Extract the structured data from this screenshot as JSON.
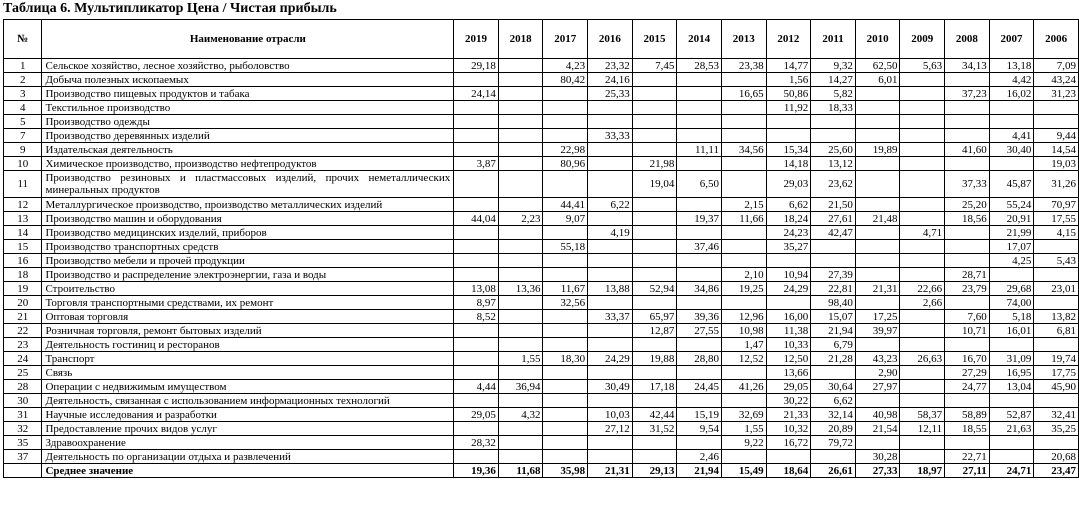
{
  "title": "Таблица 6. Мультипликатор Цена / Чистая прибыль",
  "headers": {
    "num": "№",
    "name": "Наименование отрасли",
    "years": [
      "2019",
      "2018",
      "2017",
      "2016",
      "2015",
      "2014",
      "2013",
      "2012",
      "2011",
      "2010",
      "2009",
      "2008",
      "2007",
      "2006"
    ]
  },
  "rows": [
    {
      "n": "1",
      "name": "Сельское хозяйство, лесное хозяйство, рыболовство",
      "v": [
        "29,18",
        "",
        "4,23",
        "23,32",
        "7,45",
        "28,53",
        "23,38",
        "14,77",
        "9,32",
        "62,50",
        "5,63",
        "34,13",
        "13,18",
        "7,09"
      ]
    },
    {
      "n": "2",
      "name": "Добыча полезных ископаемых",
      "v": [
        "",
        "",
        "80,42",
        "24,16",
        "",
        "",
        "",
        "1,56",
        "14,27",
        "6,01",
        "",
        "",
        "4,42",
        "43,24"
      ]
    },
    {
      "n": "3",
      "name": "Производство пищевых продуктов и табака",
      "v": [
        "24,14",
        "",
        "",
        "25,33",
        "",
        "",
        "16,65",
        "50,86",
        "5,82",
        "",
        "",
        "37,23",
        "16,02",
        "31,23"
      ]
    },
    {
      "n": "4",
      "name": "Текстильное производство",
      "v": [
        "",
        "",
        "",
        "",
        "",
        "",
        "",
        "11,92",
        "18,33",
        "",
        "",
        "",
        "",
        ""
      ]
    },
    {
      "n": "5",
      "name": "Производство одежды",
      "v": [
        "",
        "",
        "",
        "",
        "",
        "",
        "",
        "",
        "",
        "",
        "",
        "",
        "",
        ""
      ]
    },
    {
      "n": "7",
      "name": "Производство деревянных изделий",
      "v": [
        "",
        "",
        "",
        "33,33",
        "",
        "",
        "",
        "",
        "",
        "",
        "",
        "",
        "4,41",
        "9,44"
      ]
    },
    {
      "n": "9",
      "name": "Издательская деятельность",
      "v": [
        "",
        "",
        "22,98",
        "",
        "",
        "11,11",
        "34,56",
        "15,34",
        "25,60",
        "19,89",
        "",
        "41,60",
        "30,40",
        "14,54"
      ]
    },
    {
      "n": "10",
      "name": "Химическое производство, производство нефтепродуктов",
      "v": [
        "3,87",
        "",
        "80,96",
        "",
        "21,98",
        "",
        "",
        "14,18",
        "13,12",
        "",
        "",
        "",
        "",
        "19,03"
      ]
    },
    {
      "n": "11",
      "name": "Производство резиновых и пластмассовых изделий, прочих неметаллических минеральных продуктов",
      "tall": true,
      "v": [
        "",
        "",
        "",
        "",
        "19,04",
        "6,50",
        "",
        "29,03",
        "23,62",
        "",
        "",
        "37,33",
        "45,87",
        "31,26"
      ]
    },
    {
      "n": "12",
      "name": "Металлургическое производство, производство металлических изделий",
      "v": [
        "",
        "",
        "44,41",
        "6,22",
        "",
        "",
        "2,15",
        "6,62",
        "21,50",
        "",
        "",
        "25,20",
        "55,24",
        "70,97"
      ]
    },
    {
      "n": "13",
      "name": "Производство машин и оборудования",
      "v": [
        "44,04",
        "2,23",
        "9,07",
        "",
        "",
        "19,37",
        "11,66",
        "18,24",
        "27,61",
        "21,48",
        "",
        "18,56",
        "20,91",
        "17,55"
      ]
    },
    {
      "n": "14",
      "name": "Производство медицинских изделий, приборов",
      "v": [
        "",
        "",
        "",
        "4,19",
        "",
        "",
        "",
        "24,23",
        "42,47",
        "",
        "4,71",
        "",
        "21,99",
        "4,15"
      ]
    },
    {
      "n": "15",
      "name": "Производство транспортных средств",
      "v": [
        "",
        "",
        "55,18",
        "",
        "",
        "37,46",
        "",
        "35,27",
        "",
        "",
        "",
        "",
        "17,07",
        ""
      ]
    },
    {
      "n": "16",
      "name": "Производство мебели и прочей продукции",
      "v": [
        "",
        "",
        "",
        "",
        "",
        "",
        "",
        "",
        "",
        "",
        "",
        "",
        "4,25",
        "5,43"
      ]
    },
    {
      "n": "18",
      "name": "Производство и распределение электроэнергии, газа и воды",
      "v": [
        "",
        "",
        "",
        "",
        "",
        "",
        "2,10",
        "10,94",
        "27,39",
        "",
        "",
        "28,71",
        "",
        ""
      ]
    },
    {
      "n": "19",
      "name": "Строительство",
      "v": [
        "13,08",
        "13,36",
        "11,67",
        "13,88",
        "52,94",
        "34,86",
        "19,25",
        "24,29",
        "22,81",
        "21,31",
        "22,66",
        "23,79",
        "29,68",
        "23,01"
      ]
    },
    {
      "n": "20",
      "name": "Торговля транспортными средствами, их ремонт",
      "v": [
        "8,97",
        "",
        "32,56",
        "",
        "",
        "",
        "",
        "",
        "98,40",
        "",
        "2,66",
        "",
        "74,00",
        ""
      ]
    },
    {
      "n": "21",
      "name": "Оптовая торговля",
      "v": [
        "8,52",
        "",
        "",
        "33,37",
        "65,97",
        "39,36",
        "12,96",
        "16,00",
        "15,07",
        "17,25",
        "",
        "7,60",
        "5,18",
        "13,82"
      ]
    },
    {
      "n": "22",
      "name": "Розничная торговля, ремонт бытовых изделий",
      "v": [
        "",
        "",
        "",
        "",
        "12,87",
        "27,55",
        "10,98",
        "11,38",
        "21,94",
        "39,97",
        "",
        "10,71",
        "16,01",
        "6,81"
      ]
    },
    {
      "n": "23",
      "name": "Деятельность гостиниц и ресторанов",
      "v": [
        "",
        "",
        "",
        "",
        "",
        "",
        "1,47",
        "10,33",
        "6,79",
        "",
        "",
        "",
        "",
        ""
      ]
    },
    {
      "n": "24",
      "name": "Транспорт",
      "v": [
        "",
        "1,55",
        "18,30",
        "24,29",
        "19,88",
        "28,80",
        "12,52",
        "12,50",
        "21,28",
        "43,23",
        "26,63",
        "16,70",
        "31,09",
        "19,74"
      ]
    },
    {
      "n": "25",
      "name": "Связь",
      "v": [
        "",
        "",
        "",
        "",
        "",
        "",
        "",
        "13,66",
        "",
        "2,90",
        "",
        "27,29",
        "16,95",
        "17,75"
      ]
    },
    {
      "n": "28",
      "name": "Операции с недвижимым имуществом",
      "v": [
        "4,44",
        "36,94",
        "",
        "30,49",
        "17,18",
        "24,45",
        "41,26",
        "29,05",
        "30,64",
        "27,97",
        "",
        "24,77",
        "13,04",
        "45,90"
      ]
    },
    {
      "n": "30",
      "name": "Деятельность, связанная с использованием информационных технологий",
      "v": [
        "",
        "",
        "",
        "",
        "",
        "",
        "",
        "30,22",
        "6,62",
        "",
        "",
        "",
        "",
        ""
      ]
    },
    {
      "n": "31",
      "name": "Научные исследования и разработки",
      "v": [
        "29,05",
        "4,32",
        "",
        "10,03",
        "42,44",
        "15,19",
        "32,69",
        "21,33",
        "32,14",
        "40,98",
        "58,37",
        "58,89",
        "52,87",
        "32,41"
      ]
    },
    {
      "n": "32",
      "name": "Предоставление прочих видов услуг",
      "v": [
        "",
        "",
        "",
        "27,12",
        "31,52",
        "9,54",
        "1,55",
        "10,32",
        "20,89",
        "21,54",
        "12,11",
        "18,55",
        "21,63",
        "35,25"
      ]
    },
    {
      "n": "35",
      "name": "Здравоохранение",
      "v": [
        "28,32",
        "",
        "",
        "",
        "",
        "",
        "9,22",
        "16,72",
        "79,72",
        "",
        "",
        "",
        "",
        ""
      ]
    },
    {
      "n": "37",
      "name": "Деятельность по организации отдыха и развлечений",
      "v": [
        "",
        "",
        "",
        "",
        "",
        "2,46",
        "",
        "",
        "",
        "30,28",
        "",
        "22,71",
        "",
        "20,68"
      ]
    }
  ],
  "avg": {
    "name": "Среднее значение",
    "v": [
      "19,36",
      "11,68",
      "35,98",
      "21,31",
      "29,13",
      "21,94",
      "15,49",
      "18,64",
      "26,61",
      "27,33",
      "18,97",
      "27,11",
      "24,71",
      "23,47"
    ]
  }
}
